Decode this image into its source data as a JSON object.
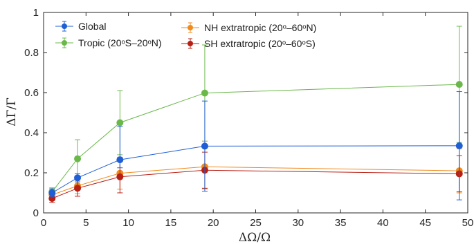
{
  "chart_data": {
    "type": "line",
    "title": "",
    "xlabel": "ΔΩ/Ω",
    "ylabel": "ΔΓ/Γ",
    "xlim": [
      0,
      50
    ],
    "ylim": [
      0,
      1
    ],
    "xticks": [
      0,
      5,
      10,
      15,
      20,
      25,
      30,
      35,
      40,
      45,
      50
    ],
    "yticks": [
      0,
      0.2,
      0.4,
      0.6,
      0.8,
      1
    ],
    "grid": false,
    "legend_position": "top-left",
    "x": [
      1,
      4,
      9,
      19,
      49
    ],
    "series": [
      {
        "name": "Global",
        "color": "#1f5fd6",
        "values": [
          0.1,
          0.175,
          0.265,
          0.333,
          0.335
        ],
        "err_low": [
          0.02,
          0.02,
          0.04,
          0.225,
          0.27
        ],
        "err_high": [
          0.02,
          0.02,
          0.165,
          0.225,
          0.27
        ]
      },
      {
        "name": "NH extratropic (20ᵒ–60ᵒN)",
        "color": "#f08a1c",
        "values": [
          0.09,
          0.135,
          0.198,
          0.23,
          0.21
        ],
        "err_low": [
          0.02,
          0.04,
          0.08,
          0.11,
          0.11
        ],
        "err_high": [
          0.02,
          0.04,
          0.08,
          0.11,
          0.11
        ]
      },
      {
        "name": "Tropic (20ᵒS–20ᵒN)",
        "color": "#6ab84a",
        "values": [
          0.105,
          0.27,
          0.45,
          0.598,
          0.641
        ],
        "err_low": [
          0.02,
          0.095,
          0.16,
          0.24,
          0.29
        ],
        "err_high": [
          0.02,
          0.095,
          0.16,
          0.24,
          0.29
        ]
      },
      {
        "name": "SH extratropic (20ᵒ–60ᵒS)",
        "color": "#b81f14",
        "values": [
          0.072,
          0.123,
          0.18,
          0.213,
          0.195
        ],
        "err_low": [
          0.02,
          0.04,
          0.08,
          0.09,
          0.09
        ],
        "err_high": [
          0.02,
          0.04,
          0.08,
          0.09,
          0.09
        ]
      }
    ]
  }
}
